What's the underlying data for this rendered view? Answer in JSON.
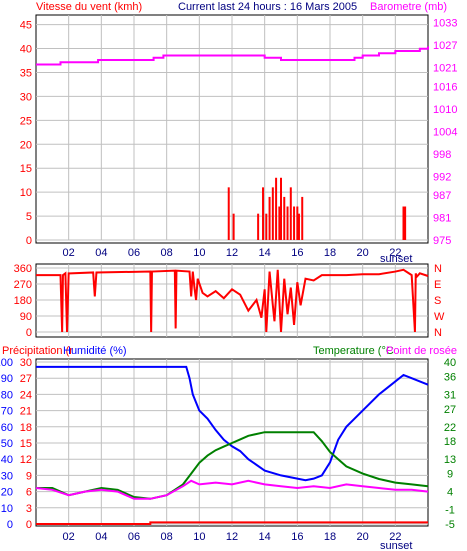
{
  "header": {
    "left_title": "Vitesse du vent (kmh)",
    "center_title": "Current last 24 hours : 16 Mars 2005",
    "right_title": "Barometre (mb)"
  },
  "bottom_header": {
    "left_title": "Précipitation (r",
    "left_title2": "Humidité (%)",
    "right_title": "Temperature (°C",
    "right_title2": "Point de rosée"
  },
  "labels": {
    "sunset": "sunset"
  },
  "colors": {
    "wind": "#ff0000",
    "pressure": "#ff00ff",
    "direction": "#ff0000",
    "humidity": "#0000ff",
    "temperature": "#008000",
    "dewpoint": "#ff00ff",
    "precipitation": "#ff0000",
    "grid": "#c0c0c0",
    "axis": "#000000"
  },
  "chart_data": [
    {
      "type": "line",
      "title": "Vitesse du vent (kmh) / Barometre (mb)",
      "x_ticks": [
        "02",
        "04",
        "06",
        "08",
        "10",
        "12",
        "14",
        "16",
        "18",
        "20",
        "22"
      ],
      "x_tick_hours": [
        2,
        4,
        6,
        8,
        10,
        12,
        14,
        16,
        18,
        20,
        22
      ],
      "xlim": [
        0,
        24
      ],
      "left_axis": {
        "label": "Vitesse du vent (kmh)",
        "ticks": [
          0,
          5,
          10,
          15,
          20,
          25,
          30,
          35,
          40,
          45
        ],
        "ylim": [
          0,
          47
        ]
      },
      "right_axis": {
        "label": "Barometre (mb)",
        "ticks": [
          975,
          981,
          987,
          992,
          998,
          1004,
          1010,
          1016,
          1021,
          1027,
          1033
        ],
        "ylim": [
          975,
          1035
        ]
      },
      "series": [
        {
          "name": "Vitesse du vent",
          "axis": "left",
          "kind": "bars",
          "x": [
            11.8,
            12.1,
            13.6,
            13.9,
            14.1,
            14.3,
            14.5,
            14.7,
            14.9,
            15.0,
            15.2,
            15.4,
            15.6,
            15.8,
            16.0,
            16.1,
            16.3,
            22.5,
            22.6
          ],
          "y": [
            11,
            5.5,
            5.5,
            11,
            5.5,
            9,
            11,
            13,
            7,
            13,
            9,
            7,
            11,
            7,
            7,
            5.5,
            9,
            7,
            7
          ]
        },
        {
          "name": "Barometre",
          "axis": "right",
          "kind": "step",
          "x": [
            0,
            1.3,
            1.5,
            3.5,
            3.8,
            4.5,
            7.2,
            7.8,
            11,
            12,
            14,
            15,
            18,
            19.5,
            20,
            21,
            22,
            23.5,
            24
          ],
          "y": [
            1021.8,
            1021.8,
            1022.4,
            1022.4,
            1023.0,
            1023.0,
            1023.6,
            1024.2,
            1024.2,
            1024.2,
            1023.6,
            1023.0,
            1023.0,
            1023.6,
            1024.2,
            1024.8,
            1025.4,
            1026.0,
            1026.6
          ]
        }
      ]
    },
    {
      "type": "line",
      "title": "Direction du vent",
      "left_axis": {
        "ticks": [
          0,
          90,
          180,
          270,
          360
        ],
        "ylim": [
          0,
          360
        ]
      },
      "right_axis": {
        "ticks": [
          "N",
          "W",
          "S",
          "E",
          "N"
        ]
      },
      "xlim": [
        0,
        24
      ],
      "series": [
        {
          "name": "Direction",
          "x": [
            0,
            1.5,
            1.6,
            1.65,
            1.8,
            1.9,
            2.0,
            2.1,
            3.5,
            3.6,
            3.7,
            7.0,
            7.05,
            7.1,
            8.5,
            8.55,
            8.6,
            9.4,
            9.5,
            9.6,
            9.7,
            9.8,
            9.9,
            10.2,
            10.5,
            11,
            11.5,
            12,
            12.5,
            13,
            13.5,
            13.8,
            14.0,
            14.1,
            14.3,
            14.5,
            14.6,
            14.8,
            15.0,
            15.2,
            15.4,
            15.6,
            15.8,
            16.0,
            16.2,
            16.5,
            17,
            17.5,
            18,
            19,
            20,
            21,
            22,
            22.5,
            23,
            23.2,
            23.25,
            23.3,
            23.5,
            24
          ],
          "y": [
            320,
            320,
            0,
            320,
            330,
            0,
            330,
            330,
            335,
            200,
            335,
            340,
            0,
            340,
            345,
            20,
            345,
            340,
            200,
            340,
            250,
            180,
            300,
            220,
            200,
            230,
            190,
            240,
            210,
            120,
            180,
            80,
            240,
            0,
            340,
            150,
            60,
            350,
            0,
            300,
            100,
            250,
            40,
            280,
            150,
            300,
            290,
            320,
            320,
            320,
            325,
            325,
            340,
            350,
            320,
            0,
            330,
            310,
            330,
            315
          ]
        }
      ]
    },
    {
      "type": "line",
      "title": "Précipitation / Humidité (%) / Temperature (°C) / Point de rosée",
      "xlim": [
        0,
        24
      ],
      "left_axis_humidity": {
        "label": "Humidité (%)",
        "ticks": [
          0,
          10,
          20,
          30,
          40,
          50,
          60,
          70,
          80,
          90,
          100
        ],
        "ylim": [
          0,
          100
        ]
      },
      "left_axis_precip": {
        "label": "Précipitation",
        "ticks": [
          0,
          3,
          6,
          9,
          12,
          15,
          18,
          21,
          24,
          27,
          30
        ]
      },
      "right_axis": {
        "label": "Temperature (°C)",
        "ticks": [
          -5,
          -1,
          4,
          9,
          13,
          18,
          22,
          27,
          31,
          36,
          40
        ],
        "ylim": [
          -5,
          40
        ]
      },
      "series": [
        {
          "name": "Humidité",
          "axis": "humidity",
          "x": [
            0,
            9.2,
            9.4,
            9.6,
            10,
            10.5,
            11,
            11.5,
            12,
            12.5,
            13,
            14,
            15,
            16,
            16.5,
            17,
            17.5,
            18,
            18.5,
            19,
            19.5,
            20,
            21,
            22,
            22.5,
            23,
            23.5,
            24
          ],
          "y": [
            97,
            97,
            90,
            80,
            70,
            65,
            58,
            52,
            48,
            45,
            40,
            33,
            30,
            28,
            27,
            28,
            30,
            38,
            52,
            60,
            65,
            70,
            80,
            88,
            92,
            90,
            88,
            86
          ]
        },
        {
          "name": "Temperature",
          "axis": "temp",
          "x": [
            0,
            1,
            2,
            3,
            4,
            5,
            6,
            7,
            8,
            9,
            9.5,
            10,
            10.5,
            11,
            11.5,
            12,
            12.5,
            13,
            14,
            15,
            16,
            17,
            17.5,
            18,
            18.5,
            19,
            20,
            21,
            22,
            23,
            24
          ],
          "y": [
            5,
            5,
            3,
            4,
            5,
            4.5,
            2.5,
            2,
            3,
            6,
            9,
            12,
            14,
            15.5,
            16.5,
            17.5,
            18.5,
            19.5,
            20.5,
            20.5,
            20.5,
            20.5,
            18,
            15,
            13,
            11,
            9,
            7.5,
            6.5,
            6,
            5.5
          ]
        },
        {
          "name": "Point de rosée",
          "axis": "temp",
          "x": [
            0,
            1,
            2,
            3,
            4,
            5,
            6,
            7,
            8,
            9,
            9.5,
            10,
            11,
            12,
            13,
            14,
            15,
            16,
            17,
            18,
            19,
            20,
            21,
            22,
            23,
            24
          ],
          "y": [
            5,
            4.5,
            3,
            4,
            4.5,
            4,
            2,
            2,
            3,
            5.5,
            7,
            6,
            6.5,
            6,
            7,
            6,
            5.5,
            5,
            5.5,
            5,
            6,
            5.5,
            5,
            4.5,
            4.5,
            4
          ]
        },
        {
          "name": "Précipitation",
          "axis": "precip",
          "kind": "step",
          "x": [
            0,
            6.9,
            7.0,
            24
          ],
          "y": [
            0,
            0,
            0.3,
            0.3
          ]
        }
      ]
    }
  ]
}
